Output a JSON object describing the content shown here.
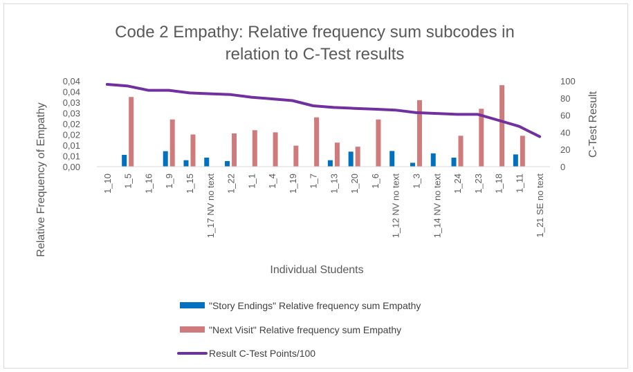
{
  "chart_data": {
    "type": "bar",
    "title": "Code 2 Empathy: Relative frequency sum subcodes in relation to C-Test results",
    "title_lines": [
      "Code 2 Empathy: Relative frequency sum subcodes in",
      "relation to C-Test results"
    ],
    "xlabel": "Individual Students",
    "ylabel": "Relative Frequency of Empathy",
    "y2label": "C-Test Result",
    "ylim": [
      0,
      0.04
    ],
    "y_ticks": [
      "0,00",
      "0,01",
      "0,01",
      "0,02",
      "0,02",
      "0,03",
      "0,03",
      "0,04",
      "0,04"
    ],
    "y2lim": [
      0,
      100
    ],
    "y2_ticks": [
      "0",
      "20",
      "40",
      "60",
      "80",
      "100"
    ],
    "grid": false,
    "legend_position": "bottom",
    "categories": [
      "1_10",
      "1_5",
      "1_16",
      "1_9",
      "1_15",
      "1_17 NV no text",
      "1_22",
      "1_1",
      "1_4",
      "1_19",
      "1_7",
      "1_13",
      "1_20",
      "1_6",
      "1_12 NV no text",
      "1_3",
      "1_14 NV no text",
      "1_24",
      "1_23",
      "1_18",
      "1_11",
      "1_21 SE no text"
    ],
    "series": [
      {
        "name": "\"Story Endings\" Relative frequency sum Empathy",
        "type": "bar",
        "axis": "left",
        "color": "#0070c0",
        "values": [
          0,
          0.0055,
          0,
          0.0072,
          0.003,
          0.0042,
          0.0026,
          0,
          0,
          0,
          0,
          0.003,
          0.007,
          0,
          0.0073,
          0.0018,
          0.0062,
          0.0042,
          0,
          0,
          0.0057,
          0
        ]
      },
      {
        "name": "\"Next Visit\" Relative frequency sum Empathy",
        "type": "bar",
        "axis": "left",
        "color": "#d07b7b",
        "values": [
          0,
          0.0325,
          0,
          0.022,
          0.015,
          0,
          0.0155,
          0.017,
          0.016,
          0.0098,
          0.023,
          0.0112,
          0.0093,
          0.022,
          0,
          0.031,
          0,
          0.0144,
          0.027,
          0.038,
          0.0144,
          0
        ]
      },
      {
        "name": "Result C-Test Points/100",
        "type": "line",
        "axis": "right",
        "color": "#7030a0",
        "values": [
          96,
          94,
          89,
          89,
          86,
          85,
          84,
          81,
          79,
          77,
          71,
          69,
          68,
          67,
          66,
          63,
          62,
          61,
          61,
          54,
          47,
          35
        ]
      }
    ]
  }
}
